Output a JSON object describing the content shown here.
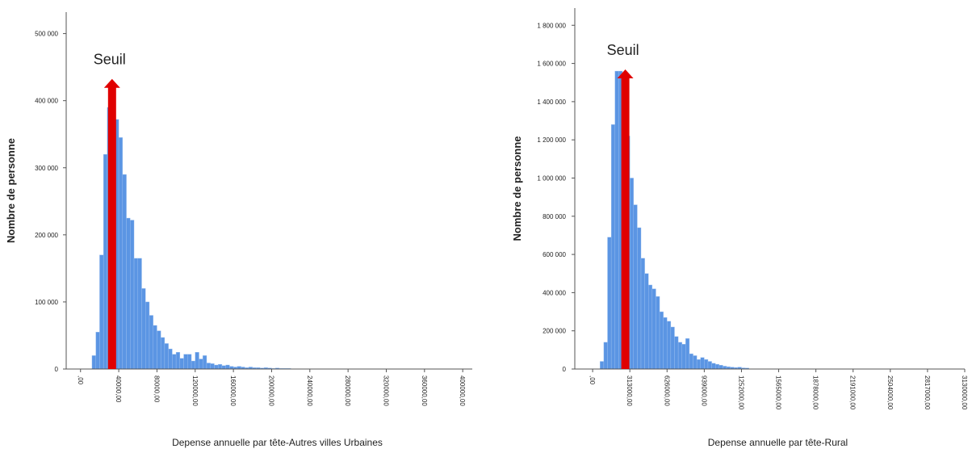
{
  "chart_data": [
    {
      "type": "histogram",
      "xlabel": "Depense annuelle par tête-Autres villes Urbaines",
      "ylabel": "Nombre de personne",
      "color": "#5b95e3",
      "bins": [
        12000,
        16000,
        20000,
        24000,
        28000,
        32000,
        36000,
        40000,
        44000,
        48000,
        52000,
        56000,
        60000,
        64000,
        68000,
        72000,
        76000,
        80000,
        84000,
        88000,
        92000,
        96000,
        100000,
        104000,
        108000,
        112000,
        116000,
        120000,
        124000,
        128000,
        132000,
        136000,
        140000,
        144000,
        148000,
        152000,
        156000,
        160000,
        164000,
        168000,
        172000,
        176000,
        180000,
        184000,
        188000,
        192000,
        196000,
        200000,
        204000,
        208000,
        212000,
        216000,
        220000
      ],
      "values": [
        20000,
        55000,
        170000,
        320000,
        390000,
        420000,
        372000,
        345000,
        290000,
        225000,
        222000,
        165000,
        165000,
        120000,
        100000,
        80000,
        65000,
        57000,
        47000,
        38000,
        30000,
        22000,
        25000,
        16000,
        22000,
        22000,
        12000,
        25000,
        15000,
        20000,
        9000,
        8000,
        6000,
        7000,
        5000,
        6000,
        4000,
        3000,
        4000,
        3000,
        2000,
        3000,
        2000,
        2000,
        1500,
        2000,
        1500,
        1000,
        1500,
        1000,
        1000,
        1000
      ],
      "xlim": [
        -15000,
        410000
      ],
      "xticks": [
        {
          "value": 0,
          "label": ",00"
        },
        {
          "value": 40000,
          "label": "40000,00"
        },
        {
          "value": 80000,
          "label": "80000,00"
        },
        {
          "value": 120000,
          "label": "120000,00"
        },
        {
          "value": 160000,
          "label": "160000,00"
        },
        {
          "value": 200000,
          "label": "200000,00"
        },
        {
          "value": 240000,
          "label": "240000,00"
        },
        {
          "value": 280000,
          "label": "280000,00"
        },
        {
          "value": 320000,
          "label": "320000,00"
        },
        {
          "value": 360000,
          "label": "360000,00"
        },
        {
          "value": 400000,
          "label": "400000,00"
        }
      ],
      "ylim": [
        0,
        532000
      ],
      "yticks": [
        0,
        {
          "value": 100000,
          "label": "100 000"
        },
        {
          "value": 200000,
          "label": "200 000"
        },
        {
          "value": 300000,
          "label": "300 000"
        },
        {
          "value": 400000,
          "label": "400 000"
        },
        {
          "value": 500000,
          "label": "500 000"
        }
      ],
      "annotation": {
        "text": "Seuil",
        "x": 33000,
        "y": 430000,
        "color": "#e00000"
      }
    },
    {
      "type": "histogram",
      "xlabel": "Depense annuelle par tête-Rural",
      "ylabel": "Nombre de personne",
      "color": "#5b95e3",
      "bins": [
        62600,
        93900,
        125200,
        156500,
        187800,
        219100,
        250400,
        281700,
        313000,
        344300,
        375600,
        406900,
        438200,
        469500,
        500800,
        532100,
        563400,
        594700,
        626000,
        657300,
        688600,
        719900,
        751200,
        782500,
        813800,
        845100,
        876400,
        907700,
        939000,
        970300,
        1001600,
        1032900,
        1064200,
        1095500,
        1126800,
        1158100,
        1189400,
        1220700,
        1252000,
        1283300,
        1314600
      ],
      "values": [
        40000,
        140000,
        690000,
        1280000,
        1560000,
        1560000,
        1430000,
        1220000,
        1000000,
        860000,
        740000,
        580000,
        500000,
        440000,
        420000,
        380000,
        300000,
        270000,
        250000,
        220000,
        170000,
        140000,
        130000,
        160000,
        80000,
        70000,
        50000,
        60000,
        50000,
        40000,
        30000,
        25000,
        20000,
        15000,
        12000,
        10000,
        8000,
        10000,
        6000,
        5000
      ],
      "xlim": [
        -150000,
        3130000
      ],
      "xticks": [
        {
          "value": 0,
          "label": ",00"
        },
        {
          "value": 313000,
          "label": "313000,00"
        },
        {
          "value": 626000,
          "label": "626000,00"
        },
        {
          "value": 939000,
          "label": "939000,00"
        },
        {
          "value": 1252000,
          "label": "1252000,00"
        },
        {
          "value": 1565000,
          "label": "1565000,00"
        },
        {
          "value": 1878000,
          "label": "1878000,00"
        },
        {
          "value": 2191000,
          "label": "2191000,00"
        },
        {
          "value": 2504000,
          "label": "2504000,00"
        },
        {
          "value": 2817000,
          "label": "2817000,00"
        },
        {
          "value": 3130000,
          "label": "3130000,00"
        }
      ],
      "ylim": [
        0,
        1890000
      ],
      "yticks": [
        0,
        {
          "value": 200000,
          "label": "200 000"
        },
        {
          "value": 400000,
          "label": "400 000"
        },
        {
          "value": 600000,
          "label": "600 000"
        },
        {
          "value": 800000,
          "label": "800 000"
        },
        {
          "value": 1000000,
          "label": "1 000 000"
        },
        {
          "value": 1200000,
          "label": "1 200 000"
        },
        {
          "value": 1400000,
          "label": "1 400 000"
        },
        {
          "value": 1600000,
          "label": "1 600 000"
        },
        {
          "value": 1800000,
          "label": "1 800 000"
        }
      ],
      "annotation": {
        "text": "Seuil",
        "x": 275000,
        "y": 1560000,
        "color": "#e00000"
      }
    }
  ]
}
